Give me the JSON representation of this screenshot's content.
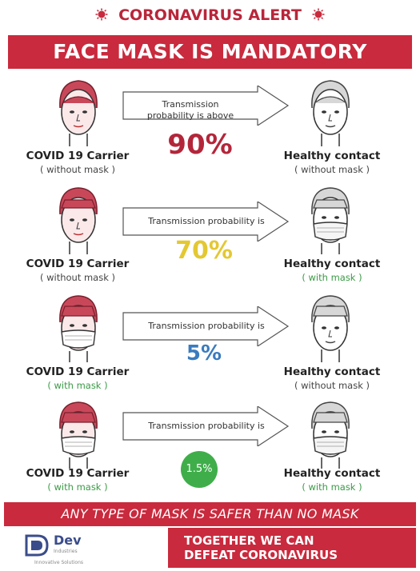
{
  "header": {
    "alert_text": "CORONAVIRUS ALERT",
    "banner_text": "FACE MASK IS MANDATORY"
  },
  "rows": [
    {
      "carrier_label": "COVID 19 Carrier",
      "carrier_sub": "( without mask )",
      "contact_label": "Healthy contact",
      "contact_sub": "( without  mask )",
      "transmission_text_1": "Transmission",
      "transmission_text_2": "probability is above",
      "percent": "90%",
      "percent_color": "#b3263a"
    },
    {
      "carrier_label": "COVID 19 Carrier",
      "carrier_sub": "( without mask )",
      "contact_label": "Healthy contact",
      "contact_sub": "( with mask )",
      "transmission_text_1": "Transmission probability is",
      "percent": "70%",
      "percent_color": "#e3c832"
    },
    {
      "carrier_label": "COVID 19 Carrier",
      "carrier_sub": "( with mask )",
      "contact_label": "Healthy contact",
      "contact_sub": "( without mask )",
      "transmission_text_1": "Transmission probability is",
      "percent": "5%",
      "percent_color": "#3a7bbf"
    },
    {
      "carrier_label": "COVID 19 Carrier",
      "carrier_sub": "( with mask )",
      "contact_label": "Healthy contact",
      "contact_sub": "( with mask )",
      "transmission_text_1": "Transmission probability is",
      "percent": "1.5%",
      "percent_color": "#3fae4a"
    }
  ],
  "footer": {
    "safer_text": "ANY TYPE OF MASK IS SAFER THAN NO MASK",
    "logo_name": "Dev",
    "logo_sub": "Industries",
    "logo_tagline": "Innovative Solutions",
    "together_line1": "TOGETHER WE CAN",
    "together_line2": "DEFEAT CORONAVIRUS"
  },
  "colors": {
    "brand_red": "#c92a3d",
    "green": "#3a9a45"
  }
}
